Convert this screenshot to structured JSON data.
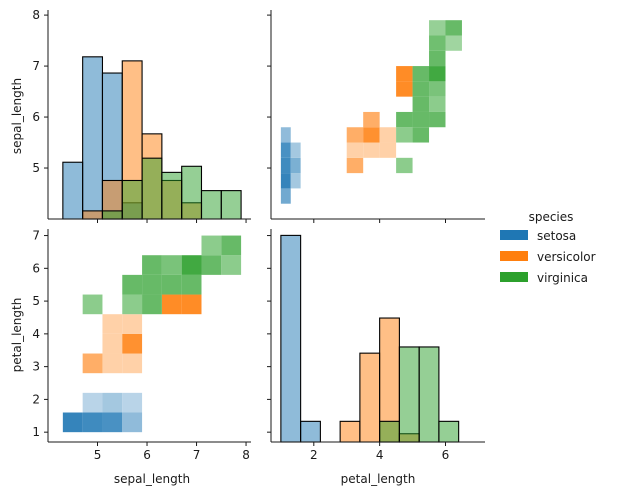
{
  "chart_data": {
    "type": "pairplot",
    "variables": [
      "sepal_length",
      "petal_length"
    ],
    "xlabels": [
      "sepal_length",
      "petal_length"
    ],
    "ylabels": [
      "sepal_length",
      "petal_length"
    ],
    "legend": {
      "title": "species",
      "placement": "right",
      "entries": [
        {
          "name": "setosa",
          "color": "#1f77b4"
        },
        {
          "name": "versicolor",
          "color": "#ff7f0e"
        },
        {
          "name": "virginica",
          "color": "#2ca02c"
        }
      ]
    },
    "axes": {
      "sepal_length": {
        "lim": [
          4.0,
          8.1
        ],
        "ticks": [
          5,
          6,
          7,
          8
        ]
      },
      "petal_length": {
        "lim": [
          0.7,
          7.2
        ],
        "ticks": [
          1,
          2,
          3,
          4,
          5,
          6,
          7
        ]
      },
      "petal_length_x": {
        "lim": [
          0.7,
          7.2
        ],
        "ticks": [
          2,
          4,
          6
        ]
      }
    },
    "hist_sepal_length": {
      "bin_edges": [
        4.3,
        4.7,
        5.1,
        5.5,
        5.9,
        6.3,
        6.7,
        7.1,
        7.5,
        7.9
      ],
      "setosa": [
        0.28,
        0.8,
        0.72,
        0.08,
        0,
        0,
        0,
        0,
        0
      ],
      "versicolor": [
        0,
        0.04,
        0.19,
        0.78,
        0.42,
        0.19,
        0.08,
        0,
        0
      ],
      "virginica": [
        0,
        0,
        0.04,
        0.19,
        0.3,
        0.23,
        0.26,
        0.14,
        0.14
      ]
    },
    "hist_petal_length": {
      "bin_edges": [
        1.0,
        1.6,
        2.2,
        2.8,
        3.4,
        4.0,
        4.6,
        5.2,
        5.8,
        6.4,
        6.9
      ],
      "setosa": [
        1.0,
        0.1,
        0,
        0,
        0,
        0,
        0,
        0,
        0,
        0
      ],
      "versicolor": [
        0,
        0,
        0,
        0.1,
        0.43,
        0.6,
        0.04,
        0,
        0,
        0
      ],
      "virginica": [
        0,
        0,
        0,
        0,
        0,
        0.1,
        0.46,
        0.46,
        0.1,
        0
      ]
    },
    "hist2d_petal_vs_sepal": [
      {
        "species": "setosa",
        "x0": 1.0,
        "x1": 1.3,
        "y0": 4.3,
        "y1": 4.6,
        "level": 0.7
      },
      {
        "species": "setosa",
        "x0": 1.0,
        "x1": 1.3,
        "y0": 4.6,
        "y1": 4.9,
        "level": 1.0
      },
      {
        "species": "setosa",
        "x0": 1.3,
        "x1": 1.6,
        "y0": 4.6,
        "y1": 4.9,
        "level": 0.45
      },
      {
        "species": "setosa",
        "x0": 1.0,
        "x1": 1.3,
        "y0": 4.9,
        "y1": 5.2,
        "level": 0.95
      },
      {
        "species": "setosa",
        "x0": 1.3,
        "x1": 1.6,
        "y0": 4.9,
        "y1": 5.2,
        "level": 0.65
      },
      {
        "species": "setosa",
        "x0": 1.0,
        "x1": 1.3,
        "y0": 5.2,
        "y1": 5.5,
        "level": 0.9
      },
      {
        "species": "setosa",
        "x0": 1.3,
        "x1": 1.6,
        "y0": 5.2,
        "y1": 5.5,
        "level": 0.45
      },
      {
        "species": "setosa",
        "x0": 1.0,
        "x1": 1.3,
        "y0": 5.5,
        "y1": 5.8,
        "level": 0.55
      },
      {
        "species": "versicolor",
        "x0": 3.0,
        "x1": 3.5,
        "y0": 4.9,
        "y1": 5.2,
        "level": 0.7
      },
      {
        "species": "versicolor",
        "x0": 3.0,
        "x1": 3.5,
        "y0": 5.2,
        "y1": 5.5,
        "level": 0.4
      },
      {
        "species": "versicolor",
        "x0": 3.5,
        "x1": 4.0,
        "y0": 5.2,
        "y1": 5.5,
        "level": 0.4
      },
      {
        "species": "versicolor",
        "x0": 4.0,
        "x1": 4.5,
        "y0": 5.2,
        "y1": 5.5,
        "level": 0.4
      },
      {
        "species": "versicolor",
        "x0": 3.0,
        "x1": 3.5,
        "y0": 5.5,
        "y1": 5.8,
        "level": 0.7
      },
      {
        "species": "versicolor",
        "x0": 3.5,
        "x1": 4.0,
        "y0": 5.5,
        "y1": 5.8,
        "level": 0.95
      },
      {
        "species": "versicolor",
        "x0": 4.0,
        "x1": 4.5,
        "y0": 5.5,
        "y1": 5.8,
        "level": 0.4
      },
      {
        "species": "versicolor",
        "x0": 3.5,
        "x1": 4.0,
        "y0": 5.8,
        "y1": 6.1,
        "level": 0.7
      },
      {
        "species": "versicolor",
        "x0": 4.5,
        "x1": 5.0,
        "y0": 6.4,
        "y1": 6.7,
        "level": 1.0
      },
      {
        "species": "versicolor",
        "x0": 4.5,
        "x1": 5.0,
        "y0": 6.7,
        "y1": 7.0,
        "level": 1.0
      },
      {
        "species": "virginica",
        "x0": 4.5,
        "x1": 5.0,
        "y0": 4.9,
        "y1": 5.2,
        "level": 0.6
      },
      {
        "species": "virginica",
        "x0": 4.5,
        "x1": 5.0,
        "y0": 5.5,
        "y1": 5.8,
        "level": 0.6
      },
      {
        "species": "virginica",
        "x0": 5.0,
        "x1": 5.5,
        "y0": 5.5,
        "y1": 5.8,
        "level": 0.8
      },
      {
        "species": "virginica",
        "x0": 4.5,
        "x1": 5.0,
        "y0": 5.8,
        "y1": 6.1,
        "level": 0.8
      },
      {
        "species": "virginica",
        "x0": 5.0,
        "x1": 5.5,
        "y0": 5.8,
        "y1": 6.1,
        "level": 0.8
      },
      {
        "species": "virginica",
        "x0": 5.5,
        "x1": 6.0,
        "y0": 5.8,
        "y1": 6.1,
        "level": 0.8
      },
      {
        "species": "virginica",
        "x0": 5.0,
        "x1": 5.5,
        "y0": 6.1,
        "y1": 6.4,
        "level": 0.8
      },
      {
        "species": "virginica",
        "x0": 5.5,
        "x1": 6.0,
        "y0": 6.1,
        "y1": 6.4,
        "level": 0.6
      },
      {
        "species": "virginica",
        "x0": 5.0,
        "x1": 5.5,
        "y0": 6.4,
        "y1": 6.7,
        "level": 0.8
      },
      {
        "species": "virginica",
        "x0": 5.5,
        "x1": 6.0,
        "y0": 6.4,
        "y1": 6.7,
        "level": 0.7
      },
      {
        "species": "virginica",
        "x0": 5.0,
        "x1": 5.5,
        "y0": 6.7,
        "y1": 7.0,
        "level": 0.8
      },
      {
        "species": "virginica",
        "x0": 5.5,
        "x1": 6.0,
        "y0": 6.7,
        "y1": 7.0,
        "level": 1.0
      },
      {
        "species": "virginica",
        "x0": 5.5,
        "x1": 6.0,
        "y0": 7.0,
        "y1": 7.3,
        "level": 0.8
      },
      {
        "species": "virginica",
        "x0": 5.5,
        "x1": 6.0,
        "y0": 7.3,
        "y1": 7.6,
        "level": 0.75
      },
      {
        "species": "virginica",
        "x0": 6.0,
        "x1": 6.5,
        "y0": 7.3,
        "y1": 7.6,
        "level": 0.5
      },
      {
        "species": "virginica",
        "x0": 5.5,
        "x1": 6.0,
        "y0": 7.6,
        "y1": 7.9,
        "level": 0.55
      },
      {
        "species": "virginica",
        "x0": 6.0,
        "x1": 6.5,
        "y0": 7.6,
        "y1": 7.9,
        "level": 0.8
      }
    ],
    "hist2d_sepal_vs_petal": [
      {
        "species": "setosa",
        "x0": 4.3,
        "x1": 4.7,
        "y0": 1.0,
        "y1": 1.6,
        "level": 1.0
      },
      {
        "species": "setosa",
        "x0": 4.7,
        "x1": 5.1,
        "y0": 1.0,
        "y1": 1.6,
        "level": 0.95
      },
      {
        "species": "setosa",
        "x0": 5.1,
        "x1": 5.5,
        "y0": 1.0,
        "y1": 1.6,
        "level": 0.9
      },
      {
        "species": "setosa",
        "x0": 5.5,
        "x1": 5.9,
        "y0": 1.0,
        "y1": 1.6,
        "level": 0.55
      },
      {
        "species": "setosa",
        "x0": 4.7,
        "x1": 5.1,
        "y0": 1.6,
        "y1": 2.2,
        "level": 0.35
      },
      {
        "species": "setosa",
        "x0": 5.1,
        "x1": 5.5,
        "y0": 1.6,
        "y1": 2.2,
        "level": 0.45
      },
      {
        "species": "setosa",
        "x0": 5.5,
        "x1": 5.9,
        "y0": 1.6,
        "y1": 2.2,
        "level": 0.35
      },
      {
        "species": "versicolor",
        "x0": 4.7,
        "x1": 5.1,
        "y0": 2.8,
        "y1": 3.4,
        "level": 0.7
      },
      {
        "species": "versicolor",
        "x0": 5.1,
        "x1": 5.5,
        "y0": 2.8,
        "y1": 3.4,
        "level": 0.4
      },
      {
        "species": "versicolor",
        "x0": 5.5,
        "x1": 5.9,
        "y0": 2.8,
        "y1": 3.4,
        "level": 0.4
      },
      {
        "species": "versicolor",
        "x0": 5.1,
        "x1": 5.5,
        "y0": 3.4,
        "y1": 4.0,
        "level": 0.4
      },
      {
        "species": "versicolor",
        "x0": 5.5,
        "x1": 5.9,
        "y0": 3.4,
        "y1": 4.0,
        "level": 0.95
      },
      {
        "species": "versicolor",
        "x0": 5.1,
        "x1": 5.5,
        "y0": 4.0,
        "y1": 4.6,
        "level": 0.4
      },
      {
        "species": "versicolor",
        "x0": 5.5,
        "x1": 5.9,
        "y0": 4.0,
        "y1": 4.6,
        "level": 0.4
      },
      {
        "species": "versicolor",
        "x0": 6.3,
        "x1": 6.7,
        "y0": 4.6,
        "y1": 5.2,
        "level": 1.0
      },
      {
        "species": "versicolor",
        "x0": 6.7,
        "x1": 7.1,
        "y0": 4.6,
        "y1": 5.2,
        "level": 1.0
      },
      {
        "species": "virginica",
        "x0": 4.7,
        "x1": 5.1,
        "y0": 4.6,
        "y1": 5.2,
        "level": 0.6
      },
      {
        "species": "virginica",
        "x0": 5.5,
        "x1": 5.9,
        "y0": 4.6,
        "y1": 5.2,
        "level": 0.6
      },
      {
        "species": "virginica",
        "x0": 5.9,
        "x1": 6.3,
        "y0": 4.6,
        "y1": 5.2,
        "level": 0.8
      },
      {
        "species": "virginica",
        "x0": 5.5,
        "x1": 5.9,
        "y0": 5.2,
        "y1": 5.8,
        "level": 0.8
      },
      {
        "species": "virginica",
        "x0": 5.9,
        "x1": 6.3,
        "y0": 5.2,
        "y1": 5.8,
        "level": 0.8
      },
      {
        "species": "virginica",
        "x0": 6.3,
        "x1": 6.7,
        "y0": 5.2,
        "y1": 5.8,
        "level": 0.8
      },
      {
        "species": "virginica",
        "x0": 6.7,
        "x1": 7.1,
        "y0": 5.2,
        "y1": 5.8,
        "level": 0.8
      },
      {
        "species": "virginica",
        "x0": 5.9,
        "x1": 6.3,
        "y0": 5.8,
        "y1": 6.4,
        "level": 0.8
      },
      {
        "species": "virginica",
        "x0": 6.3,
        "x1": 6.7,
        "y0": 5.8,
        "y1": 6.4,
        "level": 0.7
      },
      {
        "species": "virginica",
        "x0": 6.7,
        "x1": 7.1,
        "y0": 5.8,
        "y1": 6.4,
        "level": 1.0
      },
      {
        "species": "virginica",
        "x0": 7.1,
        "x1": 7.5,
        "y0": 5.8,
        "y1": 6.4,
        "level": 0.8
      },
      {
        "species": "virginica",
        "x0": 7.5,
        "x1": 7.9,
        "y0": 5.8,
        "y1": 6.4,
        "level": 0.6
      },
      {
        "species": "virginica",
        "x0": 7.1,
        "x1": 7.5,
        "y0": 6.4,
        "y1": 7.0,
        "level": 0.6
      },
      {
        "species": "virginica",
        "x0": 7.5,
        "x1": 7.9,
        "y0": 6.4,
        "y1": 7.0,
        "level": 0.8
      }
    ]
  }
}
